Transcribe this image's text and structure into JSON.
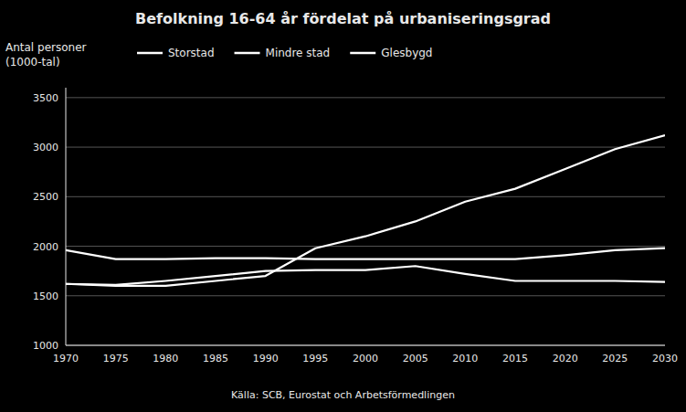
{
  "chart_data": {
    "type": "line",
    "title": "Befolkning 16-64 år fördelat på urbaniseringsgrad",
    "y_label": [
      "Antal personer",
      "(1000-tal)"
    ],
    "source": "Källa: SCB, Eurostat och Arbetsförmedlingen",
    "x": [
      1970,
      1975,
      1980,
      1985,
      1990,
      1995,
      2000,
      2005,
      2010,
      2015,
      2020,
      2025,
      2030
    ],
    "series": [
      {
        "name": "Storstad",
        "color": "#ffffff",
        "values": [
          1620,
          1600,
          1600,
          1650,
          1700,
          1980,
          2100,
          2250,
          2450,
          2580,
          2780,
          2980,
          3120
        ]
      },
      {
        "name": "Mindre stad",
        "color": "#ffffff",
        "values": [
          1960,
          1870,
          1870,
          1880,
          1880,
          1870,
          1870,
          1870,
          1870,
          1870,
          1910,
          1960,
          1980
        ]
      },
      {
        "name": "Glesbygd",
        "color": "#ffffff",
        "values": [
          1620,
          1610,
          1650,
          1700,
          1750,
          1760,
          1760,
          1800,
          1720,
          1650,
          1650,
          1650,
          1640
        ]
      }
    ],
    "xlim": [
      1970,
      2030
    ],
    "xticks": [
      1970,
      1975,
      1980,
      1985,
      1990,
      1995,
      2000,
      2005,
      2010,
      2015,
      2020,
      2025,
      2030
    ],
    "ylim": [
      1000,
      3600
    ],
    "yticks": [
      1000,
      1500,
      2000,
      2500,
      3000,
      3500
    ],
    "grid": true,
    "legend": "top"
  }
}
